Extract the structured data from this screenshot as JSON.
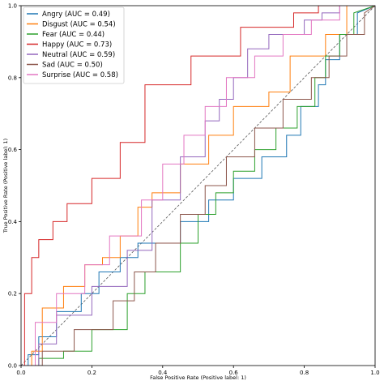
{
  "chart_data": {
    "type": "line",
    "xlabel": "False Positive Rate (Positive label: 1)",
    "ylabel": "True Positive Rate (Positive label: 1)",
    "xlim": [
      0,
      1
    ],
    "ylim": [
      0,
      1
    ],
    "x_ticks": [
      "0.0",
      "0.2",
      "0.4",
      "0.6",
      "0.8",
      "1.0"
    ],
    "y_ticks": [
      "0.0",
      "0.2",
      "0.4",
      "0.6",
      "0.8",
      "1.0"
    ],
    "grid": false,
    "legend_position": "top-left",
    "chance_line": {
      "x": [
        0,
        1
      ],
      "y": [
        0,
        1
      ],
      "color": "#555555",
      "style": "dashed"
    },
    "series": [
      {
        "name": "Angry (AUC = 0.49)",
        "color": "#1f77b4",
        "x": [
          0.0,
          0.02,
          0.02,
          0.05,
          0.05,
          0.1,
          0.1,
          0.17,
          0.17,
          0.22,
          0.22,
          0.28,
          0.28,
          0.33,
          0.33,
          0.45,
          0.45,
          0.53,
          0.53,
          0.6,
          0.6,
          0.68,
          0.68,
          0.75,
          0.75,
          0.79,
          0.79,
          0.84,
          0.84,
          0.86,
          0.86,
          0.9,
          0.9,
          0.95,
          0.95,
          1.0
        ],
        "y": [
          0.0,
          0.0,
          0.03,
          0.03,
          0.08,
          0.08,
          0.15,
          0.15,
          0.2,
          0.2,
          0.26,
          0.26,
          0.3,
          0.3,
          0.34,
          0.34,
          0.4,
          0.4,
          0.46,
          0.46,
          0.52,
          0.52,
          0.58,
          0.58,
          0.64,
          0.64,
          0.72,
          0.72,
          0.78,
          0.78,
          0.85,
          0.85,
          0.92,
          0.92,
          0.98,
          1.0
        ]
      },
      {
        "name": "Disgust (AUC = 0.54)",
        "color": "#ff7f0e",
        "x": [
          0.0,
          0.03,
          0.03,
          0.06,
          0.06,
          0.12,
          0.12,
          0.18,
          0.18,
          0.23,
          0.23,
          0.28,
          0.28,
          0.33,
          0.33,
          0.37,
          0.37,
          0.45,
          0.45,
          0.53,
          0.53,
          0.6,
          0.6,
          0.7,
          0.7,
          0.76,
          0.76,
          0.86,
          0.86,
          0.92,
          0.92,
          1.0
        ],
        "y": [
          0.0,
          0.0,
          0.04,
          0.04,
          0.16,
          0.16,
          0.22,
          0.22,
          0.28,
          0.28,
          0.3,
          0.3,
          0.36,
          0.36,
          0.44,
          0.44,
          0.48,
          0.48,
          0.56,
          0.56,
          0.64,
          0.64,
          0.72,
          0.72,
          0.76,
          0.76,
          0.86,
          0.86,
          0.92,
          0.92,
          1.0,
          1.0
        ]
      },
      {
        "name": "Fear (AUC = 0.44)",
        "color": "#2ca02c",
        "x": [
          0.0,
          0.05,
          0.05,
          0.12,
          0.12,
          0.2,
          0.2,
          0.3,
          0.3,
          0.35,
          0.35,
          0.45,
          0.45,
          0.5,
          0.5,
          0.55,
          0.55,
          0.6,
          0.6,
          0.66,
          0.66,
          0.72,
          0.72,
          0.78,
          0.78,
          0.83,
          0.83,
          0.86,
          0.86,
          0.9,
          0.9,
          0.94,
          0.94,
          1.0
        ],
        "y": [
          0.0,
          0.0,
          0.02,
          0.02,
          0.04,
          0.04,
          0.1,
          0.1,
          0.2,
          0.2,
          0.26,
          0.26,
          0.34,
          0.34,
          0.42,
          0.42,
          0.48,
          0.48,
          0.54,
          0.54,
          0.6,
          0.6,
          0.66,
          0.66,
          0.72,
          0.72,
          0.8,
          0.8,
          0.86,
          0.86,
          0.92,
          0.92,
          0.98,
          1.0
        ]
      },
      {
        "name": "Happy (AUC = 0.73)",
        "color": "#d62728",
        "x": [
          0.0,
          0.01,
          0.01,
          0.03,
          0.03,
          0.05,
          0.05,
          0.09,
          0.09,
          0.13,
          0.13,
          0.2,
          0.2,
          0.28,
          0.28,
          0.35,
          0.35,
          0.48,
          0.48,
          0.62,
          0.62,
          0.77,
          0.77,
          0.84,
          0.84,
          1.0
        ],
        "y": [
          0.0,
          0.0,
          0.2,
          0.2,
          0.3,
          0.3,
          0.35,
          0.35,
          0.4,
          0.4,
          0.45,
          0.45,
          0.52,
          0.52,
          0.62,
          0.62,
          0.78,
          0.78,
          0.86,
          0.86,
          0.94,
          0.94,
          0.98,
          0.98,
          1.0,
          1.0
        ]
      },
      {
        "name": "Neutral (AUC = 0.59)",
        "color": "#9467bd",
        "x": [
          0.0,
          0.05,
          0.05,
          0.1,
          0.1,
          0.2,
          0.2,
          0.3,
          0.3,
          0.37,
          0.37,
          0.45,
          0.45,
          0.52,
          0.52,
          0.56,
          0.56,
          0.6,
          0.6,
          0.64,
          0.64,
          0.7,
          0.7,
          0.8,
          0.8,
          0.85,
          0.85,
          0.9,
          0.9,
          1.0
        ],
        "y": [
          0.0,
          0.0,
          0.06,
          0.06,
          0.14,
          0.14,
          0.22,
          0.22,
          0.32,
          0.32,
          0.46,
          0.46,
          0.58,
          0.58,
          0.68,
          0.68,
          0.74,
          0.74,
          0.8,
          0.8,
          0.88,
          0.88,
          0.92,
          0.92,
          0.96,
          0.96,
          0.98,
          0.98,
          1.0,
          1.0
        ]
      },
      {
        "name": "Sad (AUC = 0.50)",
        "color": "#8c564b",
        "x": [
          0.0,
          0.06,
          0.06,
          0.15,
          0.15,
          0.26,
          0.26,
          0.32,
          0.32,
          0.38,
          0.38,
          0.45,
          0.45,
          0.52,
          0.52,
          0.58,
          0.58,
          0.66,
          0.66,
          0.74,
          0.74,
          0.82,
          0.82,
          0.87,
          0.87,
          0.92,
          0.92,
          0.97,
          0.97,
          1.0
        ],
        "y": [
          0.0,
          0.0,
          0.04,
          0.04,
          0.1,
          0.1,
          0.18,
          0.18,
          0.26,
          0.26,
          0.34,
          0.34,
          0.42,
          0.42,
          0.5,
          0.5,
          0.58,
          0.58,
          0.66,
          0.66,
          0.74,
          0.74,
          0.8,
          0.8,
          0.86,
          0.86,
          0.92,
          0.92,
          0.98,
          1.0
        ]
      },
      {
        "name": "Surprise (AUC = 0.58)",
        "color": "#e377c2",
        "x": [
          0.0,
          0.04,
          0.04,
          0.1,
          0.1,
          0.18,
          0.18,
          0.25,
          0.25,
          0.34,
          0.34,
          0.4,
          0.4,
          0.46,
          0.46,
          0.52,
          0.52,
          0.58,
          0.58,
          0.66,
          0.66,
          0.74,
          0.74,
          0.82,
          0.82,
          0.9,
          0.9,
          1.0
        ],
        "y": [
          0.0,
          0.0,
          0.12,
          0.12,
          0.2,
          0.2,
          0.28,
          0.28,
          0.36,
          0.36,
          0.46,
          0.46,
          0.56,
          0.56,
          0.64,
          0.64,
          0.72,
          0.72,
          0.8,
          0.8,
          0.86,
          0.86,
          0.92,
          0.92,
          0.96,
          0.96,
          1.0,
          1.0
        ]
      }
    ]
  }
}
